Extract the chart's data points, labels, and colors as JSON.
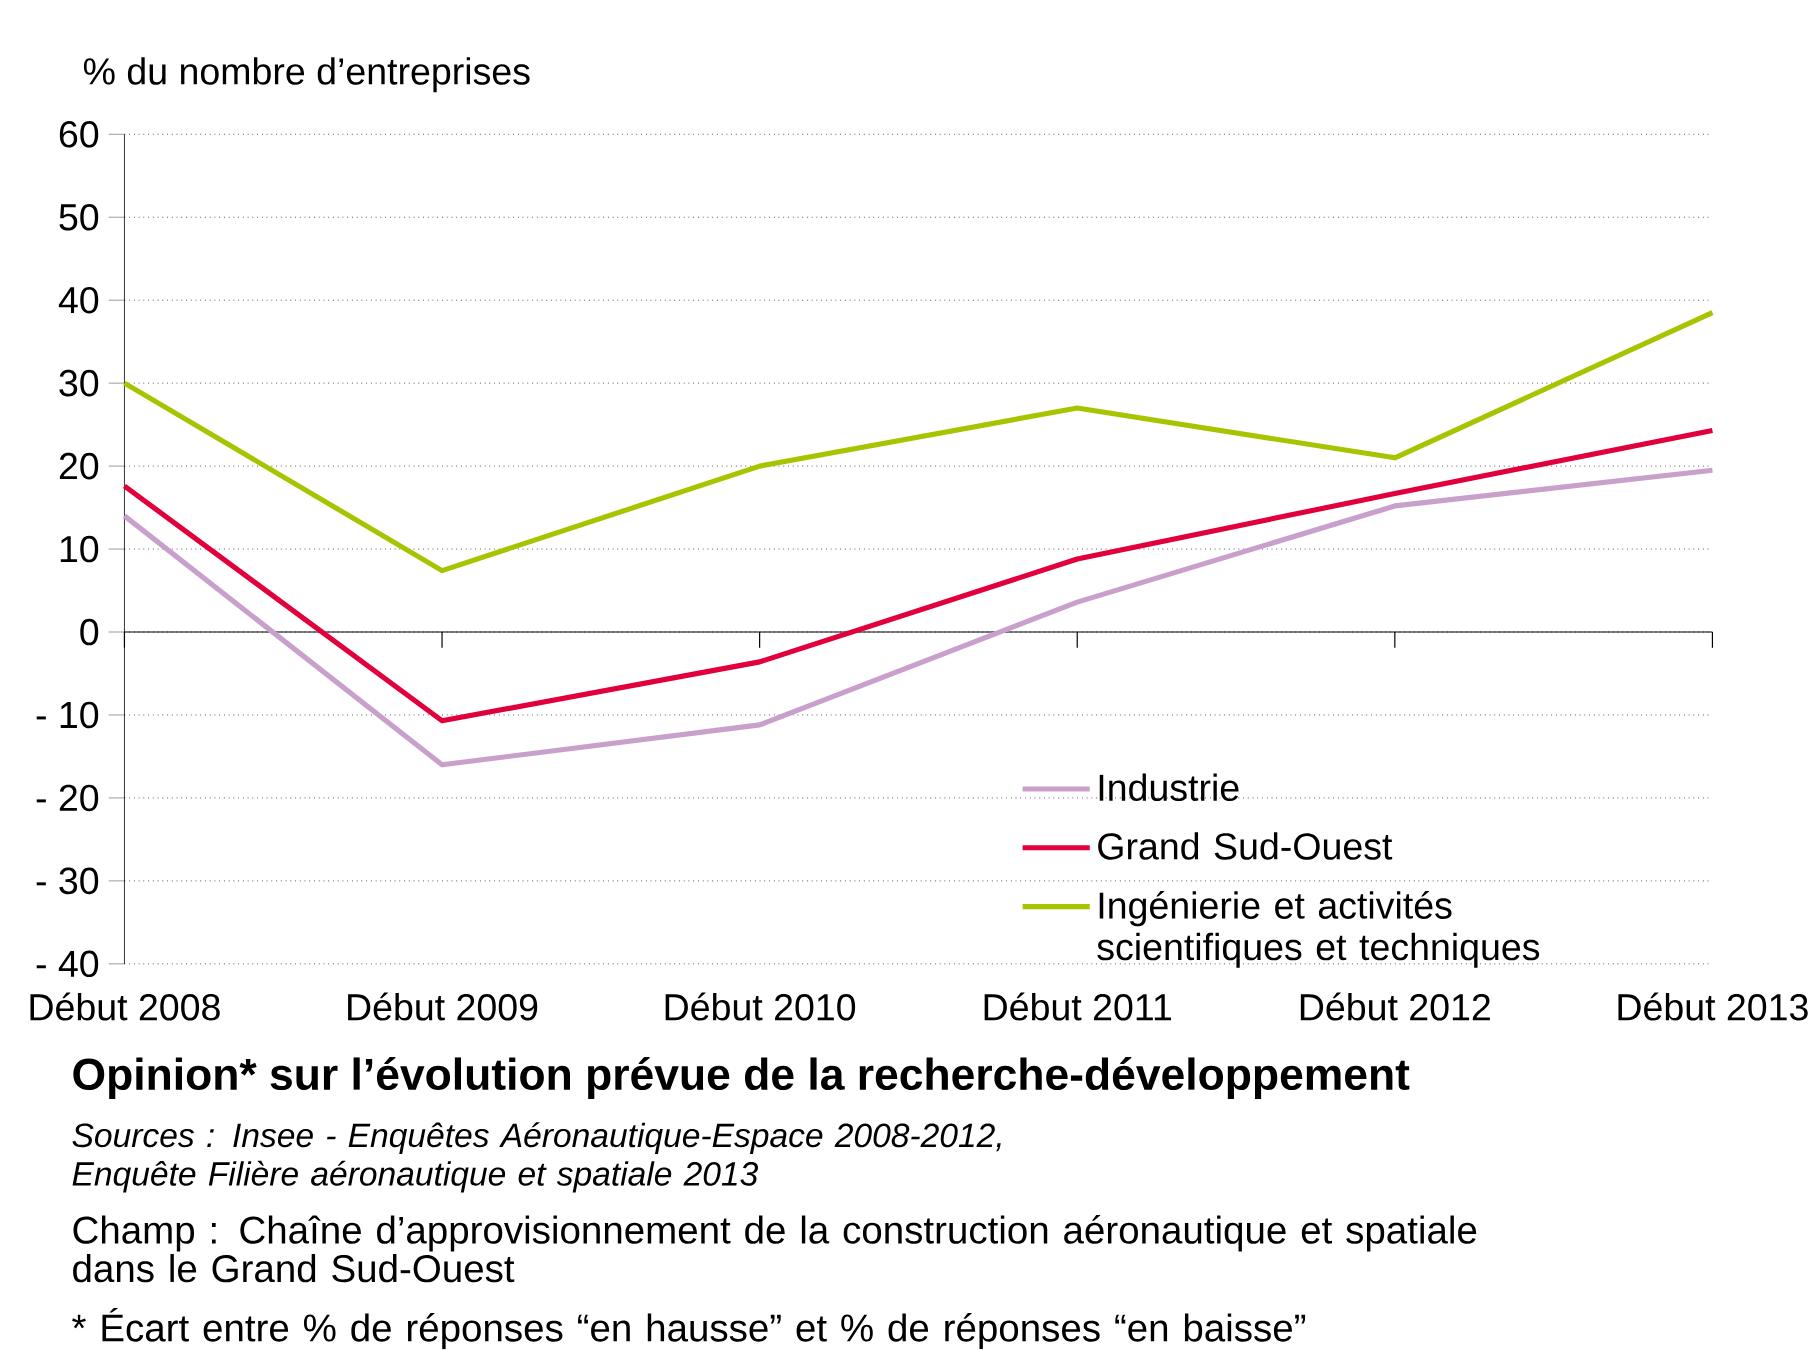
{
  "chart_data": {
    "type": "line",
    "title": "Opinion* sur l’évolution prévue de la recherche-développement",
    "ylabel": "% du nombre d’entreprises",
    "categories": [
      "Début 2008",
      "Début 2009",
      "Début 2010",
      "Début 2011",
      "Début 2012",
      "Début 2013"
    ],
    "series": [
      {
        "name": "Industrie",
        "color": "#c9a0cc",
        "values": [
          14,
          -16,
          -11.2,
          3.6,
          15.2,
          19.5
        ]
      },
      {
        "name": "Grand Sud-Ouest",
        "color": "#e2003c",
        "values": [
          17.6,
          -10.7,
          -3.6,
          8.8,
          16.7,
          24.3
        ]
      },
      {
        "name": "Ingénierie et activités scientifiques et techniques",
        "color": "#a8c400",
        "values": [
          30,
          7.4,
          20,
          27,
          21,
          38.5
        ]
      }
    ],
    "ylim": [
      -40,
      60
    ],
    "yticks": [
      {
        "value": -40,
        "label": "- 40"
      },
      {
        "value": -30,
        "label": "- 30"
      },
      {
        "value": -20,
        "label": "- 20"
      },
      {
        "value": -10,
        "label": "- 10"
      },
      0,
      10,
      20,
      30,
      40,
      50,
      60
    ],
    "grid": "y",
    "legend": "bottom right",
    "marker": "none",
    "line_style": "solid",
    "annotations": [
      "Sources : Insee - Enquêtes Aéronautique-Espace 2008-2012, Enquête Filière aéronautique et spatiale 2013",
      "Champ : Chaîne d’approvisionnement de la construction aéronautique et spatiale dans le Grand Sud-Ouest",
      "* Écart entre % de réponses “en hausse” et % de réponses “en baisse”"
    ]
  }
}
